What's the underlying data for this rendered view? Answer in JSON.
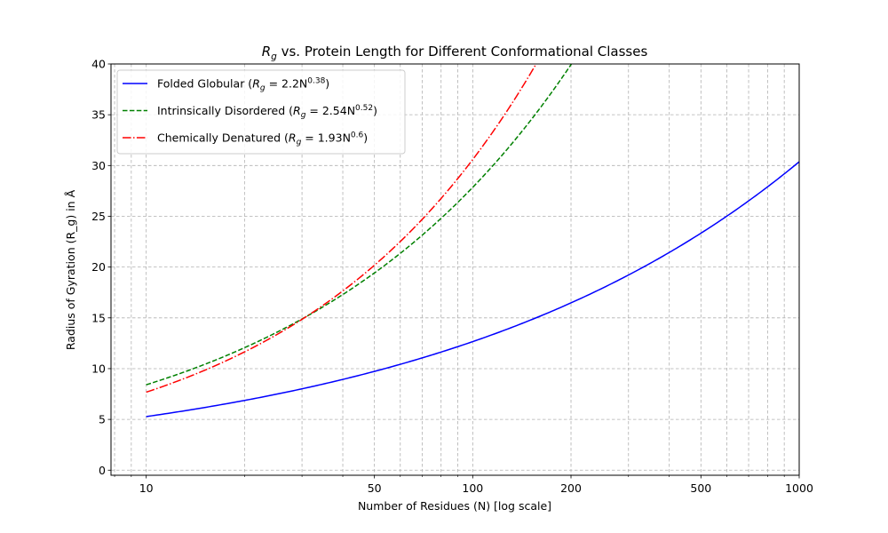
{
  "chart_data": {
    "type": "line",
    "title_parts": {
      "base": "R",
      "sub": "g",
      "rest": " vs. Protein Length for Different Conformational Classes"
    },
    "xlabel": "Number of Residues (N) [log scale]",
    "ylabel": "Radius of Gyration (R_g) in Å",
    "xscale": "log",
    "xlim": [
      7.8,
      1000
    ],
    "ylim": [
      -0.5,
      40
    ],
    "xticks": [
      10,
      50,
      100,
      200,
      500,
      1000
    ],
    "xtick_labels": [
      "10",
      "50",
      "100",
      "200",
      "500",
      "1000"
    ],
    "yticks": [
      0,
      5,
      10,
      15,
      20,
      25,
      30,
      35,
      40
    ],
    "ytick_labels": [
      "0",
      "5",
      "10",
      "15",
      "20",
      "25",
      "30",
      "35",
      "40"
    ],
    "grid": true,
    "legend_position": "top-left",
    "series": [
      {
        "name": "Folded Globular",
        "label_parts": {
          "name": "Folded Globular (",
          "base": "R",
          "sub": "g",
          "eq": " = 2.2N",
          "sup": "0.38",
          "end": ")"
        },
        "color": "#0000ff",
        "dash": "solid",
        "coef": 2.2,
        "exponent": 0.38
      },
      {
        "name": "Intrinsically Disordered",
        "label_parts": {
          "name": "Intrinsically Disordered (",
          "base": "R",
          "sub": "g",
          "eq": " = 2.54N",
          "sup": "0.52",
          "end": ")"
        },
        "color": "#008000",
        "dash": "dashed",
        "coef": 2.54,
        "exponent": 0.52
      },
      {
        "name": "Chemically Denatured",
        "label_parts": {
          "name": "Chemically Denatured (",
          "base": "R",
          "sub": "g",
          "eq": " = 1.93N",
          "sup": "0.6",
          "end": ")"
        },
        "color": "#ff0000",
        "dash": "dashdot",
        "coef": 1.93,
        "exponent": 0.6
      }
    ],
    "x_range": [
      10,
      1000
    ]
  }
}
